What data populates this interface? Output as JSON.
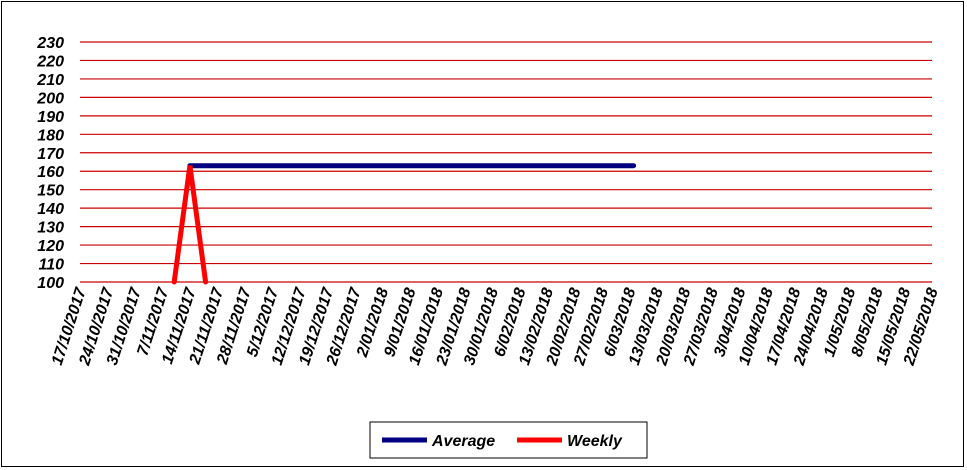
{
  "chart_data": {
    "type": "line",
    "ylim": [
      100,
      230
    ],
    "y_ticks": [
      "230",
      "220",
      "210",
      "200",
      "190",
      "180",
      "170",
      "160",
      "150",
      "140",
      "130",
      "120",
      "110",
      "100"
    ],
    "x_ticks": [
      "17/10/2017",
      "24/10/2017",
      "31/10/2017",
      "7/11/2017",
      "14/11/2017",
      "21/11/2017",
      "28/11/2017",
      "5/12/2017",
      "12/12/2017",
      "19/12/2017",
      "26/12/2017",
      "2/01/2018",
      "9/01/2018",
      "16/01/2018",
      "23/01/2018",
      "30/01/2018",
      "6/02/2018",
      "13/02/2018",
      "20/02/2018",
      "27/02/2018",
      "6/03/2018",
      "13/03/2018",
      "20/03/2018",
      "27/03/2018",
      "3/04/2018",
      "10/04/2018",
      "17/04/2018",
      "24/04/2018",
      "1/05/2018",
      "8/05/2018",
      "15/05/2018",
      "22/05/2018"
    ],
    "grid": true,
    "legend_position": "bottom",
    "series": [
      {
        "name": "Average",
        "color": "#000080",
        "points": [
          {
            "x": "14/11/2017",
            "y": 163
          },
          {
            "x": "7/03/2018",
            "y": 163
          }
        ]
      },
      {
        "name": "Weekly",
        "color": "#ff0000",
        "points": [
          {
            "x": "10/11/2017",
            "y": 100
          },
          {
            "x": "14/11/2017",
            "y": 163
          },
          {
            "x": "18/11/2017",
            "y": 100
          }
        ]
      }
    ]
  }
}
